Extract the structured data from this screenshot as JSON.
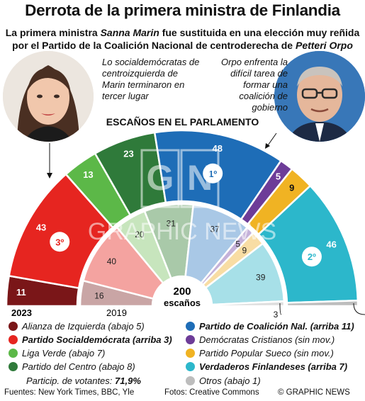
{
  "header": {
    "title": "Derrota de la primera ministra de Finlandia",
    "sub1_a": "La primera ministra ",
    "sub1_b": "Sanna Marin",
    "sub1_c": " fue sustituida en una elección muy reñida",
    "sub2_a": "por el Partido de la Coalición Nacional de centroderecha de ",
    "sub2_b": "Petteri Orpo"
  },
  "annotations": {
    "left": "Lo socialdemócratas de centroizquierda de Marin terminaron en tercer lugar",
    "right": "Orpo enfrenta la difícil tarea de formar una coalición de gobierno"
  },
  "chart_data": {
    "type": "parliament",
    "title": "ESCAÑOS EN EL PARLAMENTO",
    "total_label": "200",
    "total_unit": "escaños",
    "rings": [
      {
        "name": "2023",
        "series": [
          {
            "party": "Alianza de Izquierda",
            "seats": 11,
            "color": "#7a1618"
          },
          {
            "party": "Partido Socialdemócrata",
            "seats": 43,
            "color": "#e62520",
            "rank": "3º"
          },
          {
            "party": "Liga Verde",
            "seats": 13,
            "color": "#5cb848"
          },
          {
            "party": "Partido del Centro",
            "seats": 23,
            "color": "#2f7a3a"
          },
          {
            "party": "Partido de Coalición Nal.",
            "seats": 48,
            "color": "#1e6db7",
            "rank": "1º"
          },
          {
            "party": "Demócratas Cristianos",
            "seats": 5,
            "color": "#6d3c98"
          },
          {
            "party": "Partido Popular Sueco",
            "seats": 9,
            "color": "#f0b323"
          },
          {
            "party": "Verdaderos Finlandeses",
            "seats": 46,
            "color": "#2cb7cb",
            "rank": "2º"
          },
          {
            "party": "Otros",
            "seats": 2,
            "color": "#bdbdbd"
          }
        ]
      },
      {
        "name": "2019",
        "series": [
          {
            "party": "Alianza de Izquierda",
            "seats": 16,
            "color": "#c9a5a5"
          },
          {
            "party": "Partido Socialdemócrata",
            "seats": 40,
            "color": "#f4a3a0"
          },
          {
            "party": "Liga Verde",
            "seats": 20,
            "color": "#c7e5bd"
          },
          {
            "party": "Partido del Centro",
            "seats": 31,
            "color": "#a9c9a9"
          },
          {
            "party": "Partido de Coalición Nal.",
            "seats": 37,
            "color": "#a9c8e6"
          },
          {
            "party": "Demócratas Cristianos",
            "seats": 5,
            "color": "#c4b1d9"
          },
          {
            "party": "Partido Popular Sueco",
            "seats": 9,
            "color": "#f8dda4"
          },
          {
            "party": "Verdaderos Finlandeses",
            "seats": 39,
            "color": "#a7e0e8"
          },
          {
            "party": "Otros",
            "seats": 3,
            "color": "#dedede"
          }
        ]
      }
    ]
  },
  "legend": [
    {
      "label": "Alianza de Izquierda (abajo 5)",
      "color": "#7a1618",
      "bold": false
    },
    {
      "label": "Partido Socialdemócrata (arriba 3)",
      "color": "#e62520",
      "bold": true
    },
    {
      "label": "Liga Verde (abajo 7)",
      "color": "#5cb848",
      "bold": false
    },
    {
      "label": "Partido del Centro (abajo 8)",
      "color": "#2f7a3a",
      "bold": false
    },
    {
      "label": "Partido de Coalición Nal. (arriba 11)",
      "color": "#1e6db7",
      "bold": true
    },
    {
      "label": "Demócratas Cristianos (sin mov.)",
      "color": "#6d3c98",
      "bold": false
    },
    {
      "label": "Partido Popular Sueco (sin mov.)",
      "color": "#f0b323",
      "bold": false
    },
    {
      "label": "Verdaderos Finlandeses (arriba 7)",
      "color": "#2cb7cb",
      "bold": true
    },
    {
      "label": "Otros (abajo 1)",
      "color": "#bdbdbd",
      "bold": false
    }
  ],
  "turnout_label": "Particip. de votantes: ",
  "turnout_value": "71,9%",
  "footer": {
    "sources": "Fuentes: New York Times, BBC, Yle",
    "photos": "Fotos: Creative Commons",
    "credit": "© GRAPHIC NEWS"
  },
  "watermark": "GRAPHIC NEWS"
}
